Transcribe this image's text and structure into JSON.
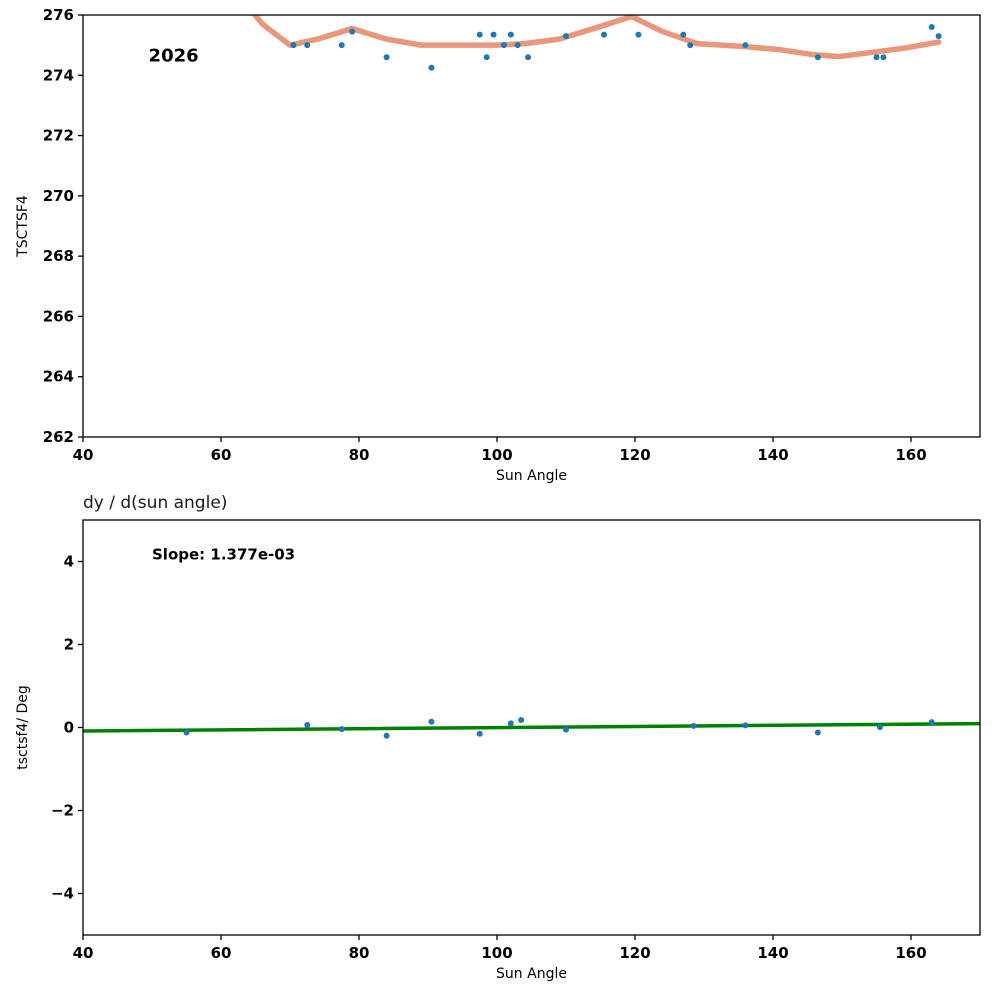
{
  "figure": {
    "background": "#ffffff",
    "point_color": "#1f77b4",
    "trend_color": "#e9967a",
    "fit_color": "#008000"
  },
  "chart_data": [
    {
      "type": "scatter",
      "title": "",
      "xlabel": "Sun Angle",
      "ylabel": "TSCTSF4",
      "xlim": [
        40,
        170
      ],
      "ylim": [
        262,
        276
      ],
      "xticks": [
        40,
        60,
        80,
        100,
        120,
        140,
        160
      ],
      "yticks": [
        262,
        264,
        266,
        268,
        270,
        272,
        274,
        276
      ],
      "grid": false,
      "legend": null,
      "annotation": {
        "text": "2026",
        "x": 49.5,
        "y": 274.45
      },
      "series": [
        {
          "name": "trend",
          "kind": "line",
          "color": "#e9967a",
          "width": 5.5,
          "x": [
            62.5,
            66,
            70,
            74,
            79,
            84,
            89,
            95,
            100,
            104,
            109,
            114,
            119.5,
            124,
            129,
            136,
            141,
            146,
            149.5,
            154,
            159,
            164
          ],
          "y": [
            276.7,
            275.7,
            275.0,
            275.2,
            275.55,
            275.2,
            275.0,
            275.0,
            275.0,
            275.05,
            275.2,
            275.55,
            275.95,
            275.45,
            275.05,
            274.95,
            274.85,
            274.68,
            274.62,
            274.75,
            274.9,
            275.1
          ]
        },
        {
          "name": "tsctsf4-points",
          "kind": "scatter",
          "color": "#1f77b4",
          "size": 3,
          "x": [
            70.5,
            72.5,
            77.5,
            79.0,
            84.0,
            90.5,
            97.5,
            98.5,
            99.5,
            101.0,
            102.0,
            103.0,
            104.5,
            110.0,
            115.5,
            120.5,
            127.0,
            128.0,
            136.0,
            146.5,
            155.0,
            156.0,
            163.0,
            164.0
          ],
          "y": [
            275.0,
            275.0,
            275.0,
            275.45,
            274.6,
            274.25,
            275.35,
            274.6,
            275.35,
            275.0,
            275.35,
            275.0,
            274.6,
            275.3,
            275.35,
            275.35,
            275.35,
            275.0,
            275.0,
            274.6,
            274.6,
            274.6,
            275.6,
            275.3
          ]
        }
      ]
    },
    {
      "type": "scatter",
      "title": "dy / d(sun angle)",
      "xlabel": "Sun Angle",
      "ylabel": "tsctsf4/ Deg",
      "xlim": [
        40,
        170
      ],
      "ylim": [
        -5,
        5
      ],
      "xticks": [
        40,
        60,
        80,
        100,
        120,
        140,
        160
      ],
      "yticks": [
        -4,
        -2,
        0,
        2,
        4
      ],
      "grid": false,
      "legend": null,
      "annotation": {
        "text": "Slope: 1.377e-03",
        "x": 50,
        "y": 4.05
      },
      "slope": "1.377e-03",
      "series": [
        {
          "name": "fit",
          "kind": "line",
          "color": "#008000",
          "width": 3.5,
          "x": [
            40,
            170
          ],
          "y": [
            -0.085,
            0.094
          ]
        },
        {
          "name": "derivative-points",
          "kind": "scatter",
          "color": "#1f77b4",
          "size": 3,
          "x": [
            55.0,
            72.5,
            77.5,
            84.0,
            90.5,
            97.5,
            102.0,
            103.5,
            110.0,
            128.5,
            136.0,
            146.5,
            155.5,
            163.0
          ],
          "y": [
            -0.12,
            0.06,
            -0.04,
            -0.2,
            0.14,
            -0.15,
            0.1,
            0.18,
            -0.05,
            0.04,
            0.05,
            -0.12,
            0.01,
            0.13
          ]
        }
      ]
    }
  ]
}
